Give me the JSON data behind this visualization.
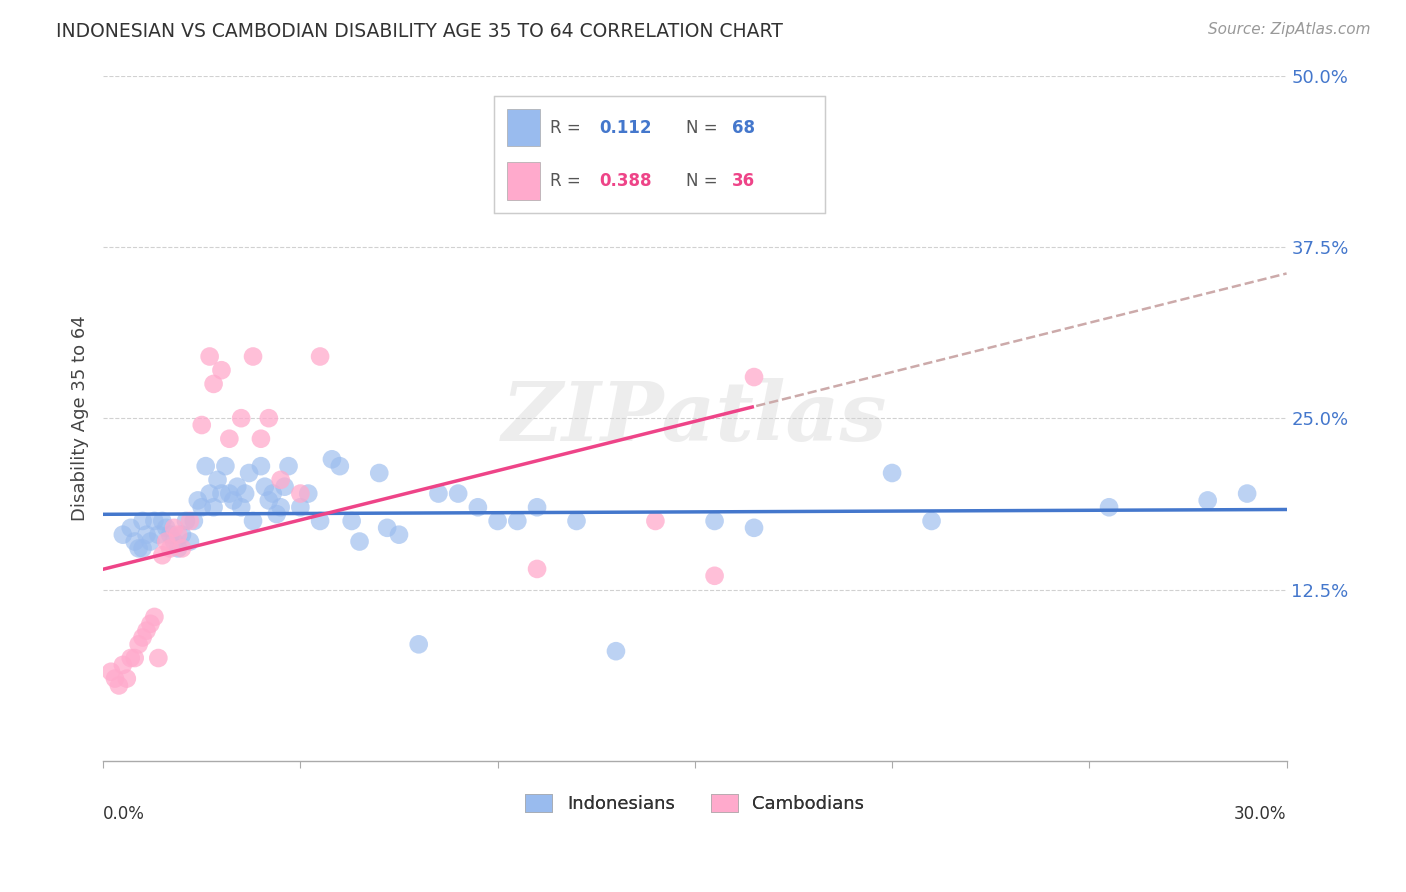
{
  "title": "INDONESIAN VS CAMBODIAN DISABILITY AGE 35 TO 64 CORRELATION CHART",
  "source": "Source: ZipAtlas.com",
  "ylabel": "Disability Age 35 to 64",
  "xlim": [
    0.0,
    0.3
  ],
  "ylim": [
    0.0,
    0.5
  ],
  "yticks": [
    0.125,
    0.25,
    0.375,
    0.5
  ],
  "ytick_labels": [
    "12.5%",
    "25.0%",
    "37.5%",
    "50.0%"
  ],
  "xtick_positions": [
    0.0,
    0.05,
    0.1,
    0.15,
    0.2,
    0.25,
    0.3
  ],
  "blue_color": "#99BBEE",
  "pink_color": "#FFAACC",
  "blue_line_color": "#4477CC",
  "pink_line_color": "#EE4488",
  "dash_line_color": "#CCAAAA",
  "watermark": "ZIPatlas",
  "indonesian_x": [
    0.005,
    0.007,
    0.008,
    0.009,
    0.01,
    0.01,
    0.011,
    0.012,
    0.013,
    0.014,
    0.015,
    0.016,
    0.017,
    0.018,
    0.019,
    0.02,
    0.021,
    0.022,
    0.023,
    0.024,
    0.025,
    0.026,
    0.027,
    0.028,
    0.029,
    0.03,
    0.031,
    0.032,
    0.033,
    0.034,
    0.035,
    0.036,
    0.037,
    0.038,
    0.04,
    0.041,
    0.042,
    0.043,
    0.044,
    0.045,
    0.046,
    0.047,
    0.05,
    0.052,
    0.055,
    0.058,
    0.06,
    0.063,
    0.065,
    0.07,
    0.072,
    0.075,
    0.08,
    0.085,
    0.09,
    0.095,
    0.1,
    0.105,
    0.11,
    0.12,
    0.13,
    0.155,
    0.165,
    0.2,
    0.21,
    0.255,
    0.28,
    0.29
  ],
  "indonesian_y": [
    0.165,
    0.17,
    0.16,
    0.155,
    0.175,
    0.155,
    0.165,
    0.16,
    0.175,
    0.165,
    0.175,
    0.17,
    0.165,
    0.16,
    0.155,
    0.165,
    0.175,
    0.16,
    0.175,
    0.19,
    0.185,
    0.215,
    0.195,
    0.185,
    0.205,
    0.195,
    0.215,
    0.195,
    0.19,
    0.2,
    0.185,
    0.195,
    0.21,
    0.175,
    0.215,
    0.2,
    0.19,
    0.195,
    0.18,
    0.185,
    0.2,
    0.215,
    0.185,
    0.195,
    0.175,
    0.22,
    0.215,
    0.175,
    0.16,
    0.21,
    0.17,
    0.165,
    0.085,
    0.195,
    0.195,
    0.185,
    0.175,
    0.175,
    0.185,
    0.175,
    0.08,
    0.175,
    0.17,
    0.21,
    0.175,
    0.185,
    0.19,
    0.195
  ],
  "cambodian_x": [
    0.002,
    0.003,
    0.004,
    0.005,
    0.006,
    0.007,
    0.008,
    0.009,
    0.01,
    0.011,
    0.012,
    0.013,
    0.014,
    0.015,
    0.016,
    0.017,
    0.018,
    0.019,
    0.02,
    0.022,
    0.025,
    0.027,
    0.028,
    0.03,
    0.032,
    0.035,
    0.038,
    0.04,
    0.042,
    0.045,
    0.05,
    0.055,
    0.11,
    0.14,
    0.155,
    0.165
  ],
  "cambodian_y": [
    0.065,
    0.06,
    0.055,
    0.07,
    0.06,
    0.075,
    0.075,
    0.085,
    0.09,
    0.095,
    0.1,
    0.105,
    0.075,
    0.15,
    0.16,
    0.155,
    0.17,
    0.165,
    0.155,
    0.175,
    0.245,
    0.295,
    0.275,
    0.285,
    0.235,
    0.25,
    0.295,
    0.235,
    0.25,
    0.205,
    0.195,
    0.295,
    0.14,
    0.175,
    0.135,
    0.28
  ]
}
